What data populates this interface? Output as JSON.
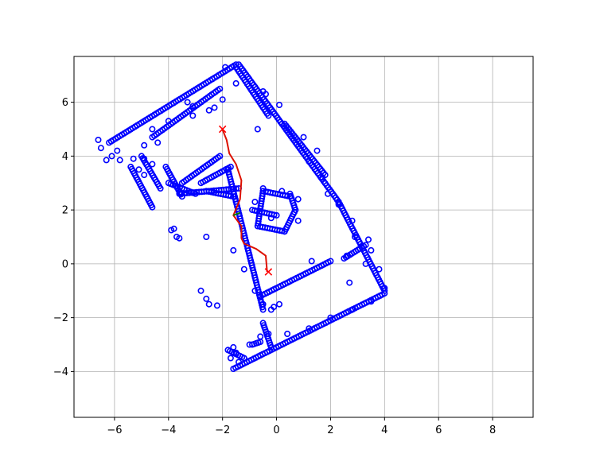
{
  "chart_data": {
    "type": "scatter",
    "title": "",
    "xlabel": "",
    "ylabel": "",
    "xlim": [
      -7.5,
      9.5
    ],
    "ylim": [
      -5.7,
      7.7
    ],
    "xticks": [
      -6,
      -4,
      -2,
      0,
      2,
      4,
      6,
      8
    ],
    "yticks": [
      -4,
      -2,
      0,
      2,
      4,
      6
    ],
    "xtick_labels": [
      "−6",
      "−4",
      "−2",
      "0",
      "2",
      "4",
      "6",
      "8"
    ],
    "ytick_labels": [
      "−4",
      "−2",
      "0",
      "2",
      "4",
      "6"
    ],
    "grid": true,
    "colors": {
      "points": "#0000ff",
      "path": "#dd1100",
      "marker": "#ff0000",
      "heading": "#008000"
    },
    "series": [
      {
        "kind": "scatter",
        "marker": "open-circle",
        "segments": [
          [
            [
              -6.2,
              4.5
            ],
            [
              -1.5,
              7.4
            ]
          ],
          [
            [
              -1.4,
              7.4
            ],
            [
              2.3,
              2.3
            ]
          ],
          [
            [
              -1.5,
              7.3
            ],
            [
              -0.3,
              5.5
            ]
          ],
          [
            [
              2.3,
              2.3
            ],
            [
              4.0,
              -1.0
            ]
          ],
          [
            [
              4.0,
              -1.1
            ],
            [
              -1.6,
              -3.9
            ]
          ],
          [
            [
              -1.8,
              3.5
            ],
            [
              -0.5,
              -1.7
            ]
          ],
          [
            [
              -0.6,
              -1.2
            ],
            [
              2.0,
              0.1
            ]
          ],
          [
            [
              2.5,
              0.2
            ],
            [
              3.3,
              0.7
            ]
          ],
          [
            [
              0.3,
              5.2
            ],
            [
              1.8,
              3.3
            ]
          ],
          [
            [
              -4.6,
              4.7
            ],
            [
              -2.1,
              6.5
            ]
          ],
          [
            [
              -5.0,
              4.0
            ],
            [
              -4.3,
              2.8
            ]
          ],
          [
            [
              -5.4,
              3.6
            ],
            [
              -4.6,
              2.1
            ]
          ],
          [
            [
              -4.1,
              3.6
            ],
            [
              -3.5,
              2.5
            ]
          ],
          [
            [
              -4.0,
              3.0
            ],
            [
              -3.0,
              2.6
            ]
          ],
          [
            [
              -3.5,
              3.0
            ],
            [
              -2.1,
              4.0
            ]
          ],
          [
            [
              -3.6,
              2.6
            ],
            [
              -1.4,
              2.8
            ]
          ],
          [
            [
              -2.8,
              3.0
            ],
            [
              -1.7,
              3.6
            ]
          ],
          [
            [
              -2.6,
              2.7
            ],
            [
              -1.6,
              2.5
            ]
          ],
          [
            [
              -0.5,
              2.7
            ],
            [
              0.5,
              2.5
            ]
          ],
          [
            [
              0.5,
              2.6
            ],
            [
              0.7,
              2.0
            ]
          ],
          [
            [
              0.7,
              2.0
            ],
            [
              0.3,
              1.2
            ]
          ],
          [
            [
              0.3,
              1.2
            ],
            [
              -0.7,
              1.4
            ]
          ],
          [
            [
              -0.7,
              1.4
            ],
            [
              -0.5,
              2.7
            ]
          ],
          [
            [
              -0.9,
              2.0
            ],
            [
              0.0,
              1.8
            ]
          ],
          [
            [
              -0.5,
              -2.2
            ],
            [
              -0.2,
              -3.1
            ]
          ],
          [
            [
              -1.8,
              -3.2
            ],
            [
              -1.2,
              -3.5
            ]
          ],
          [
            [
              -0.9,
              -3.0
            ],
            [
              -0.6,
              -2.9
            ]
          ]
        ],
        "points": [
          [
            -6.6,
            4.6
          ],
          [
            -6.5,
            4.3
          ],
          [
            -6.1,
            4.0
          ],
          [
            -6.3,
            3.85
          ],
          [
            -5.8,
            3.85
          ],
          [
            -5.9,
            4.2
          ],
          [
            -5.3,
            3.9
          ],
          [
            -4.9,
            3.9
          ],
          [
            -4.9,
            4.4
          ],
          [
            -5.1,
            3.5
          ],
          [
            -4.9,
            3.3
          ],
          [
            -4.6,
            3.7
          ],
          [
            -4.4,
            4.5
          ],
          [
            -4.6,
            5.0
          ],
          [
            -4.0,
            5.3
          ],
          [
            -3.1,
            5.5
          ],
          [
            -3.3,
            6.0
          ],
          [
            -2.5,
            5.7
          ],
          [
            -2.3,
            5.8
          ],
          [
            -3.1,
            5.85
          ],
          [
            -2.0,
            6.1
          ],
          [
            -1.9,
            7.3
          ],
          [
            -1.5,
            6.7
          ],
          [
            -0.5,
            6.4
          ],
          [
            -0.4,
            6.3
          ],
          [
            0.1,
            5.9
          ],
          [
            -0.7,
            5.0
          ],
          [
            1.0,
            4.7
          ],
          [
            1.5,
            4.2
          ],
          [
            1.2,
            3.8
          ],
          [
            2.3,
            2.25
          ],
          [
            1.9,
            2.6
          ],
          [
            1.7,
            3.2
          ],
          [
            -3.8,
            1.3
          ],
          [
            -3.9,
            1.25
          ],
          [
            -3.7,
            1.0
          ],
          [
            -3.6,
            0.95
          ],
          [
            -2.6,
            1.0
          ],
          [
            -2.8,
            -1.0
          ],
          [
            -2.6,
            -1.3
          ],
          [
            -2.5,
            -1.5
          ],
          [
            -2.2,
            -1.55
          ],
          [
            -1.6,
            0.5
          ],
          [
            -1.2,
            -0.2
          ],
          [
            -0.8,
            -1.0
          ],
          [
            -0.5,
            -1.5
          ],
          [
            -0.2,
            -1.7
          ],
          [
            -0.1,
            -1.6
          ],
          [
            0.1,
            -1.5
          ],
          [
            -1.6,
            -3.1
          ],
          [
            -1.5,
            -3.3
          ],
          [
            -1.7,
            -3.5
          ],
          [
            -1.4,
            -3.65
          ],
          [
            -1.0,
            -3.0
          ],
          [
            -0.6,
            -2.7
          ],
          [
            -0.3,
            -2.6
          ],
          [
            0.4,
            -2.6
          ],
          [
            1.2,
            -2.4
          ],
          [
            2.0,
            -2.0
          ],
          [
            2.8,
            -1.7
          ],
          [
            3.5,
            -1.4
          ],
          [
            4.0,
            -0.9
          ],
          [
            3.3,
            0.0
          ],
          [
            3.5,
            0.5
          ],
          [
            2.9,
            1.0
          ],
          [
            2.6,
            0.3
          ],
          [
            2.7,
            -0.7
          ],
          [
            1.3,
            0.1
          ],
          [
            2.3,
            2.2
          ],
          [
            2.8,
            1.6
          ],
          [
            3.4,
            0.9
          ],
          [
            3.8,
            -0.2
          ],
          [
            -0.8,
            2.3
          ],
          [
            -0.5,
            2.8
          ],
          [
            0.2,
            2.7
          ],
          [
            0.8,
            2.4
          ],
          [
            0.8,
            1.6
          ],
          [
            -0.2,
            1.7
          ]
        ]
      },
      {
        "kind": "line",
        "name": "path",
        "x": [
          -2.0,
          -1.85,
          -1.75,
          -1.5,
          -1.3,
          -1.35,
          -1.6,
          -1.3,
          -1.3,
          -1.2,
          -0.75,
          -0.4,
          -0.35
        ],
        "y": [
          4.98,
          4.6,
          4.1,
          3.7,
          3.1,
          2.4,
          1.8,
          1.4,
          0.95,
          0.75,
          0.55,
          0.3,
          -0.3
        ]
      },
      {
        "kind": "marker",
        "marker": "x",
        "points": [
          [
            -2.0,
            5.0
          ],
          [
            -0.3,
            -0.3
          ]
        ]
      },
      {
        "kind": "line",
        "name": "heading",
        "x": [
          -1.6,
          -1.35
        ],
        "y": [
          1.8,
          1.9
        ]
      }
    ]
  }
}
